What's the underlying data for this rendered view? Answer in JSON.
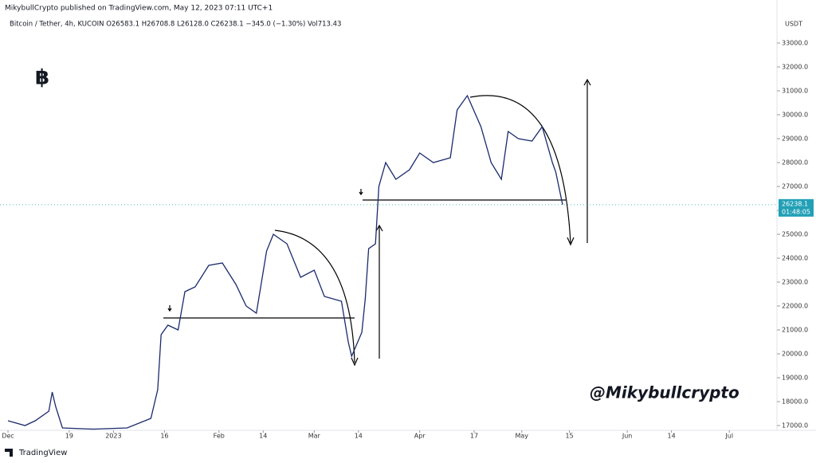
{
  "chart_data": {
    "type": "line",
    "title": "MikybullCrypto published on TradingView.com, May 12, 2023 07:11 UTC+1",
    "subtitle": "Bitcoin / Tether, 4h, KUCOIN  O26583.1  H26708.8  L26128.0  C26238.1  −345.0 (−1.30%)  Vol713.43",
    "y_axis_label": "USDT",
    "annotations": [
      "฿",
      "@Mikybullcrypto"
    ],
    "last_price": 26238.1,
    "countdown": "01:48:05",
    "footer": "TradingView",
    "x": [
      0,
      5,
      8,
      12,
      13,
      14,
      16,
      25,
      35,
      42,
      44,
      45,
      47,
      50,
      52,
      55,
      59,
      63,
      67,
      70,
      73,
      76,
      78,
      82,
      86,
      90,
      93,
      98,
      100,
      101,
      104,
      105,
      106,
      108,
      109,
      111,
      114,
      118,
      121,
      125,
      130,
      132,
      135,
      139,
      142,
      145,
      147,
      150,
      154,
      157,
      160,
      161,
      163
    ],
    "series": [
      {
        "name": "BTCUSDT",
        "color": "#1a2a6c",
        "values": [
          17200,
          17000,
          17200,
          17600,
          18400,
          17800,
          16900,
          16850,
          16900,
          17300,
          18500,
          20800,
          21200,
          21000,
          22600,
          22800,
          23700,
          23800,
          22900,
          22000,
          21700,
          24300,
          25000,
          24600,
          23200,
          23500,
          22400,
          22200,
          20500,
          19900,
          20900,
          22300,
          24400,
          24600,
          27000,
          28000,
          27300,
          27700,
          28400,
          28000,
          28200,
          30200,
          30800,
          29500,
          28000,
          27300,
          29300,
          29000,
          28900,
          29500,
          28000,
          27600,
          26238.1
        ]
      }
    ],
    "xlim": [
      -2.35,
      226
    ],
    "xticks": [
      {
        "value": 0,
        "label": "Dec"
      },
      {
        "value": 18,
        "label": "19"
      },
      {
        "value": 31,
        "label": "2023"
      },
      {
        "value": 46,
        "label": "16"
      },
      {
        "value": 62,
        "label": "Feb"
      },
      {
        "value": 75,
        "label": "14"
      },
      {
        "value": 90,
        "label": "Mar"
      },
      {
        "value": 103,
        "label": "14"
      },
      {
        "value": 121,
        "label": "Apr"
      },
      {
        "value": 137,
        "label": "17"
      },
      {
        "value": 151,
        "label": "May"
      },
      {
        "value": 165,
        "label": "15"
      },
      {
        "value": 182,
        "label": "Jun"
      },
      {
        "value": 195,
        "label": "14"
      },
      {
        "value": 212,
        "label": "Jul"
      }
    ],
    "ylim": [
      16800,
      34800
    ],
    "yticks": [
      {
        "value": 17000,
        "label": "17000.0"
      },
      {
        "value": 18000,
        "label": "18000.0"
      },
      {
        "value": 19000,
        "label": "19000.0"
      },
      {
        "value": 20000,
        "label": "20000.0"
      },
      {
        "value": 21000,
        "label": "21000.0"
      },
      {
        "value": 22000,
        "label": "22000.0"
      },
      {
        "value": 23000,
        "label": "23000.0"
      },
      {
        "value": 24000,
        "label": "24000.0"
      },
      {
        "value": 25000,
        "label": "25000.0"
      },
      {
        "value": 26000,
        "label": "26000.0"
      },
      {
        "value": 27000,
        "label": "27000.0"
      },
      {
        "value": 28000,
        "label": "28000.0"
      },
      {
        "value": 29000,
        "label": "29000.0"
      },
      {
        "value": 30000,
        "label": "30000.0"
      },
      {
        "value": 31000,
        "label": "31000.0"
      },
      {
        "value": 32000,
        "label": "32000.0"
      },
      {
        "value": 33000,
        "label": "33000.0"
      }
    ]
  }
}
